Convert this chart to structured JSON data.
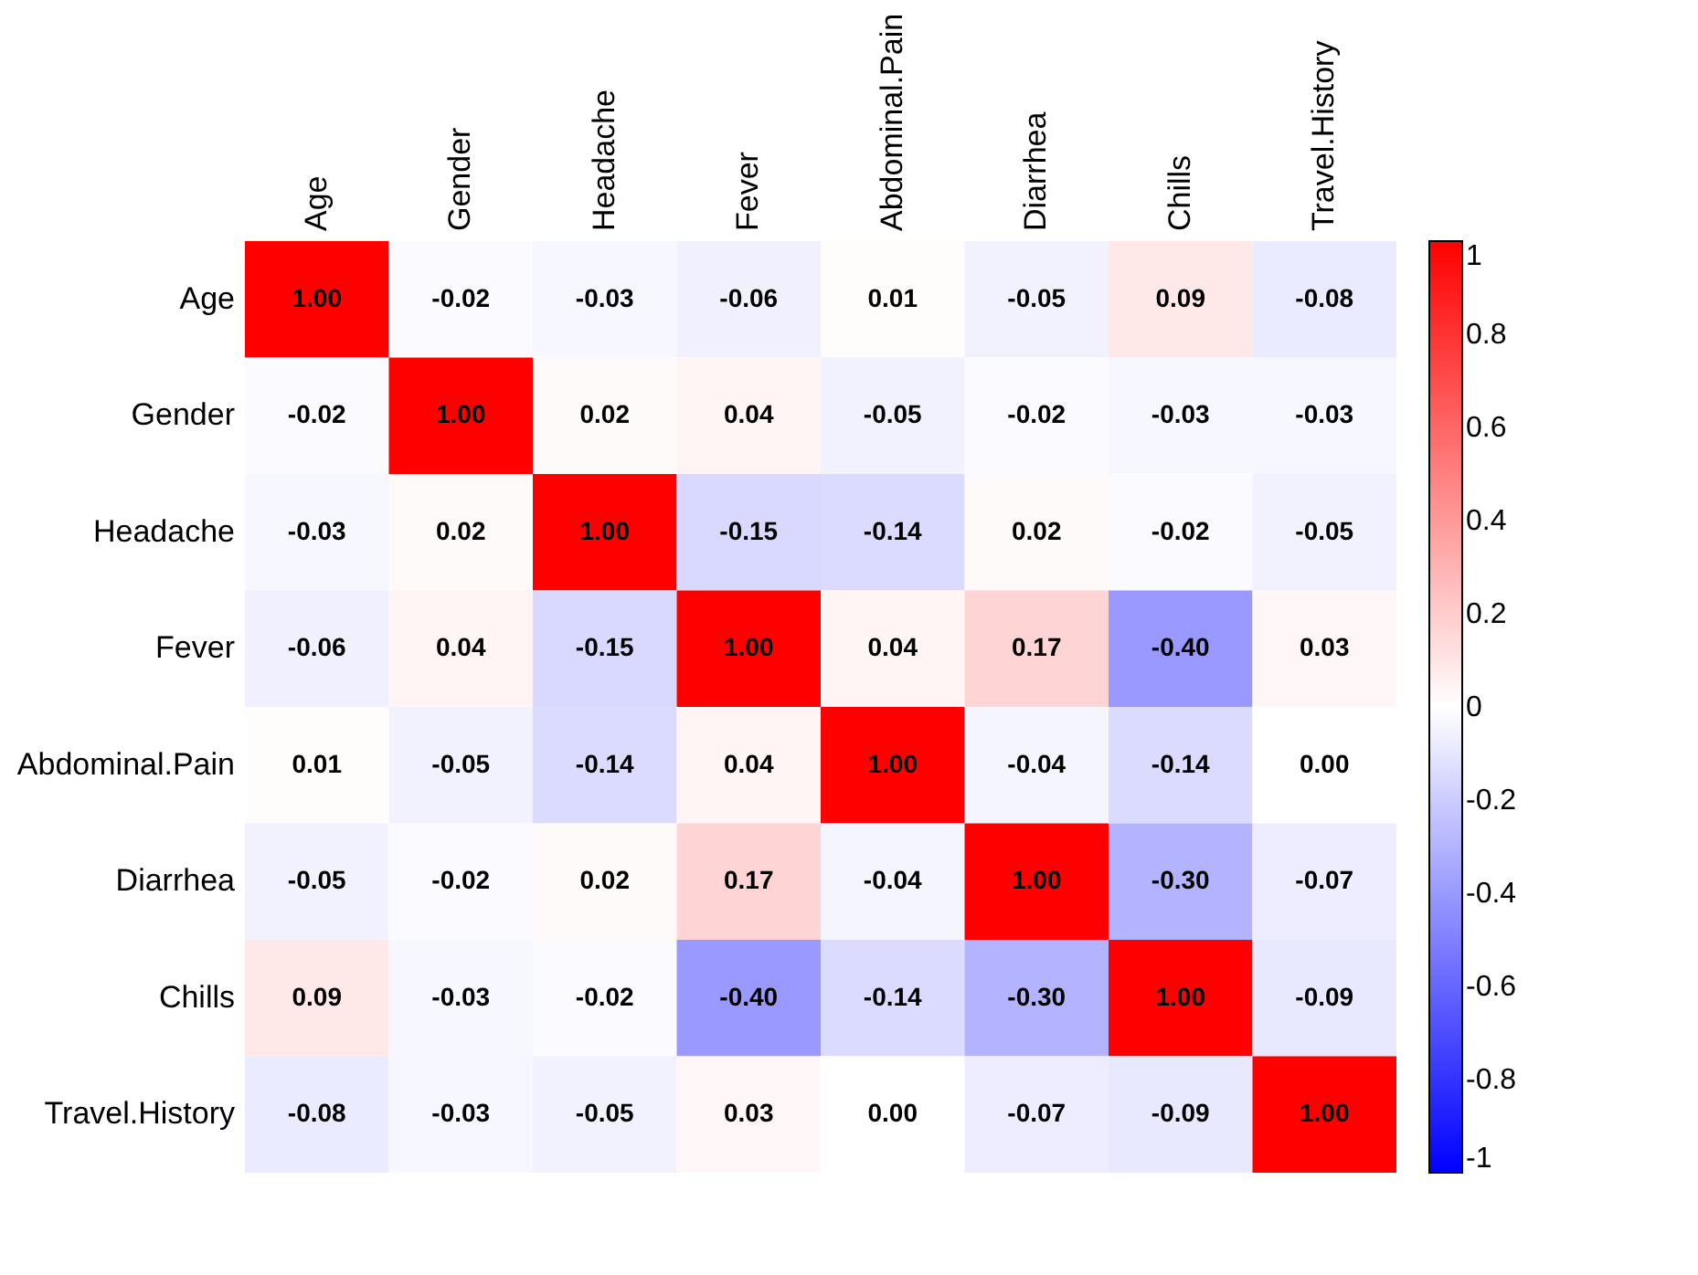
{
  "chart_data": {
    "type": "heatmap",
    "categories": [
      "Age",
      "Gender",
      "Headache",
      "Fever",
      "Abdominal.Pain",
      "Diarrhea",
      "Chills",
      "Travel.History"
    ],
    "y_categories": [
      "Age",
      "Gender",
      "Headache",
      "Fever",
      "Abdominal.Pain",
      "Diarrhea",
      "Chills",
      "Travel.History"
    ],
    "cells": [
      [
        1.0,
        -0.02,
        -0.03,
        -0.06,
        0.01,
        -0.05,
        0.09,
        -0.08
      ],
      [
        -0.02,
        1.0,
        0.02,
        0.04,
        -0.05,
        -0.02,
        -0.03,
        -0.03
      ],
      [
        -0.03,
        0.02,
        1.0,
        -0.15,
        -0.14,
        0.02,
        -0.02,
        -0.05
      ],
      [
        -0.06,
        0.04,
        -0.15,
        1.0,
        0.04,
        0.17,
        -0.4,
        0.03
      ],
      [
        0.01,
        -0.05,
        -0.14,
        0.04,
        1.0,
        -0.04,
        -0.14,
        0.0
      ],
      [
        -0.05,
        -0.02,
        0.02,
        0.17,
        -0.04,
        1.0,
        -0.3,
        -0.07
      ],
      [
        0.09,
        -0.03,
        -0.02,
        -0.4,
        -0.14,
        -0.3,
        1.0,
        -0.09
      ],
      [
        -0.08,
        -0.03,
        -0.05,
        0.03,
        0.0,
        -0.07,
        -0.09,
        1.0
      ]
    ],
    "cell_labels": [
      [
        "1.00",
        "-0.02",
        "-0.03",
        "-0.06",
        "0.01",
        "-0.05",
        "0.09",
        "-0.08"
      ],
      [
        "-0.02",
        "1.00",
        "0.02",
        "0.04",
        "-0.05",
        "-0.02",
        "-0.03",
        "-0.03"
      ],
      [
        "-0.03",
        "0.02",
        "1.00",
        "-0.15",
        "-0.14",
        "0.02",
        "-0.02",
        "-0.05"
      ],
      [
        "-0.06",
        "0.04",
        "-0.15",
        "1.00",
        "0.04",
        "0.17",
        "-0.40",
        "0.03"
      ],
      [
        "0.01",
        "-0.05",
        "-0.14",
        "0.04",
        "1.00",
        "-0.04",
        "-0.14",
        "0.00"
      ],
      [
        "-0.05",
        "-0.02",
        "0.02",
        "0.17",
        "-0.04",
        "1.00",
        "-0.30",
        "-0.07"
      ],
      [
        "0.09",
        "-0.03",
        "-0.02",
        "-0.40",
        "-0.14",
        "-0.30",
        "1.00",
        "-0.09"
      ],
      [
        "-0.08",
        "-0.03",
        "-0.05",
        "0.03",
        "0.00",
        "-0.07",
        "-0.09",
        "1.00"
      ]
    ],
    "clim": [
      -1,
      1
    ],
    "cticks": [
      -1,
      -0.8,
      -0.6,
      -0.4,
      -0.2,
      0,
      0.2,
      0.4,
      0.6,
      0.8,
      1
    ],
    "colors": [
      "#0000ff",
      "#ffffff",
      "#ff0000"
    ]
  }
}
